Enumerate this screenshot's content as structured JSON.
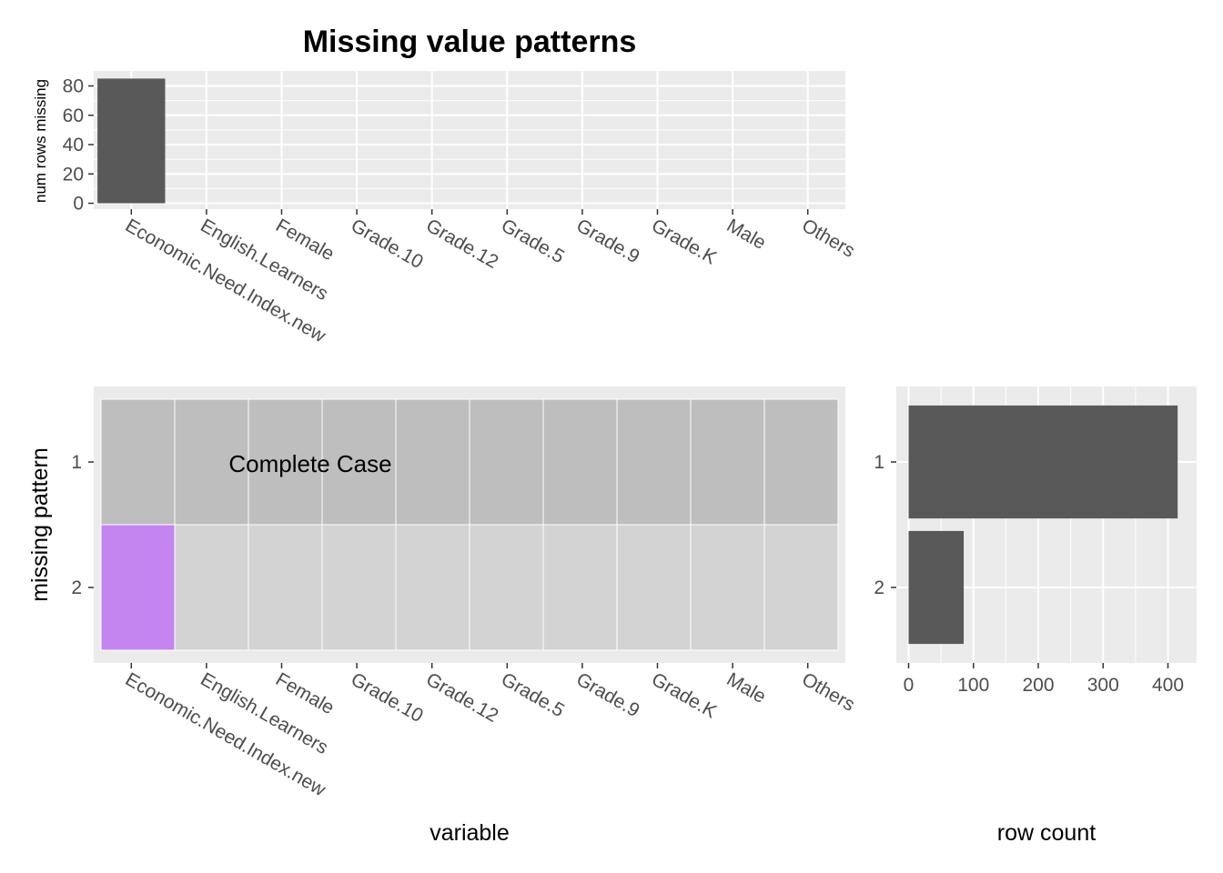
{
  "chart_data": [
    {
      "type": "bar",
      "title": "Missing value patterns",
      "xlabel": "",
      "ylabel": "num rows missing",
      "categories": [
        "Economic.Need.Index.new",
        "English.Learners",
        "Female",
        "Grade.10",
        "Grade.12",
        "Grade.5",
        "Grade.9",
        "Grade.K",
        "Male",
        "Others"
      ],
      "values": [
        85,
        0,
        0,
        0,
        0,
        0,
        0,
        0,
        0,
        0
      ],
      "ylim": [
        0,
        90
      ],
      "yticks": [
        0,
        20,
        40,
        60,
        80
      ],
      "grid": true,
      "bar_color": "#595959"
    },
    {
      "type": "heatmap",
      "xlabel": "variable",
      "ylabel": "missing pattern",
      "categories": [
        "Economic.Need.Index.new",
        "English.Learners",
        "Female",
        "Grade.10",
        "Grade.12",
        "Grade.5",
        "Grade.9",
        "Grade.K",
        "Male",
        "Others"
      ],
      "patterns": [
        "1",
        "2"
      ],
      "missing": [
        [
          0,
          0,
          0,
          0,
          0,
          0,
          0,
          0,
          0,
          0
        ],
        [
          1,
          0,
          0,
          0,
          0,
          0,
          0,
          0,
          0,
          0
        ]
      ],
      "annotation": "Complete Case",
      "colors": {
        "complete_case": "#bebebe",
        "not_missing": "#d3d3d3",
        "missing": "#c485f0"
      }
    },
    {
      "type": "bar",
      "orientation": "horizontal",
      "xlabel": "row count",
      "ylabel": "",
      "categories": [
        "1",
        "2"
      ],
      "values": [
        415,
        85
      ],
      "xlim": [
        0,
        430
      ],
      "xticks": [
        0,
        100,
        200,
        300,
        400
      ],
      "grid": true,
      "bar_color": "#595959"
    }
  ]
}
